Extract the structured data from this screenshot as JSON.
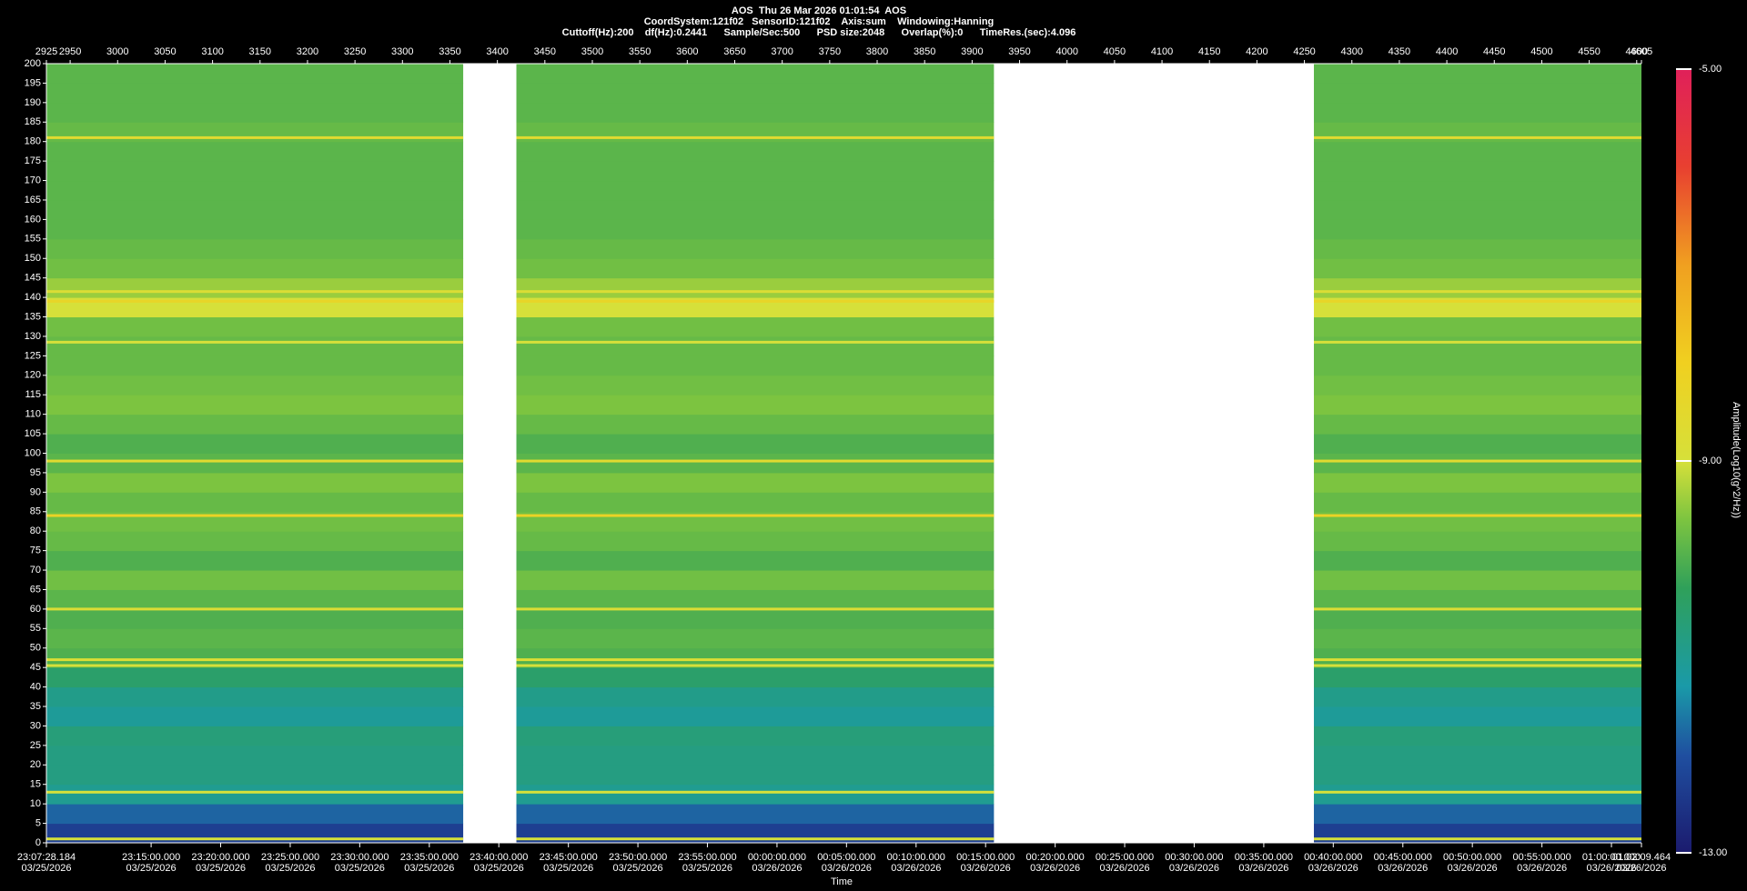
{
  "chart_data": {
    "type": "spectrogram",
    "title_lines": [
      "AOS  Thu 26 Mar 2026 01:01:54  AOS",
      "CoordSystem:121f02   SensorID:121f02    Axis:sum    Windowing:Hanning",
      "Cuttoff(Hz):200    df(Hz):0.2441      Sample/Sec:500      PSD size:2048      Overlap(%):0      TimeRes.(sec):4.096"
    ],
    "xlabel": "Time",
    "colorbar_label": "Amplitude(Log10(g^2/Hz))",
    "xlim": [
      2925,
      4605
    ],
    "ylim": [
      0,
      200
    ],
    "xticks": [
      2925,
      2950,
      3000,
      3050,
      3100,
      3150,
      3200,
      3250,
      3300,
      3350,
      3400,
      3450,
      3500,
      3550,
      3600,
      3650,
      3700,
      3750,
      3800,
      3850,
      3900,
      3950,
      4000,
      4050,
      4100,
      4150,
      4200,
      4250,
      4300,
      4350,
      4400,
      4450,
      4500,
      4550,
      4600,
      4605
    ],
    "yticks": [
      0,
      5,
      10,
      15,
      20,
      25,
      30,
      35,
      40,
      45,
      50,
      55,
      60,
      65,
      70,
      75,
      80,
      85,
      90,
      95,
      100,
      105,
      110,
      115,
      120,
      125,
      130,
      135,
      140,
      145,
      150,
      155,
      160,
      165,
      170,
      175,
      180,
      185,
      190,
      195,
      200
    ],
    "x2ticks": [
      {
        "value": 2925,
        "label": "23:07:28.184"
      },
      {
        "value": 3035.3,
        "label": "23:15:00.000"
      },
      {
        "value": 3108.5,
        "label": "23:20:00.000"
      },
      {
        "value": 3181.8,
        "label": "23:25:00.000"
      },
      {
        "value": 3255.0,
        "label": "23:30:00.000"
      },
      {
        "value": 3328.3,
        "label": "23:35:00.000"
      },
      {
        "value": 3401.5,
        "label": "23:40:00.000"
      },
      {
        "value": 3474.8,
        "label": "23:45:00.000"
      },
      {
        "value": 3548.0,
        "label": "23:50:00.000"
      },
      {
        "value": 3621.2,
        "label": "23:55:00.000"
      },
      {
        "value": 3694.5,
        "label": "00:00:00.000"
      },
      {
        "value": 3767.7,
        "label": "00:05:00.000"
      },
      {
        "value": 3841.0,
        "label": "00:10:00.000"
      },
      {
        "value": 3914.2,
        "label": "00:15:00.000"
      },
      {
        "value": 3987.5,
        "label": "00:20:00.000"
      },
      {
        "value": 4060.7,
        "label": "00:25:00.000"
      },
      {
        "value": 4133.9,
        "label": "00:30:00.000"
      },
      {
        "value": 4207.2,
        "label": "00:35:00.000"
      },
      {
        "value": 4280.4,
        "label": "00:40:00.000"
      },
      {
        "value": 4353.7,
        "label": "00:45:00.000"
      },
      {
        "value": 4426.9,
        "label": "00:50:00.000"
      },
      {
        "value": 4500.2,
        "label": "00:55:00.000"
      },
      {
        "value": 4573.4,
        "label": "01:00:00.000"
      },
      {
        "value": 4605,
        "label": "01:02:09.464"
      }
    ],
    "x2tick_dates": [
      "03/25/2026",
      "03/25/2026",
      "03/25/2026",
      "03/25/2026",
      "03/25/2026",
      "03/25/2026",
      "03/25/2026",
      "03/25/2026",
      "03/25/2026",
      "03/25/2026",
      "03/26/2026",
      "03/26/2026",
      "03/26/2026",
      "03/26/2026",
      "03/26/2026",
      "03/26/2026",
      "03/26/2026",
      "03/26/2026",
      "03/26/2026",
      "03/26/2026",
      "03/26/2026",
      "03/26/2026",
      "03/26/2026",
      "03/26/2026"
    ],
    "segments": [
      [
        2925,
        3364
      ],
      [
        3420,
        3923
      ],
      [
        4260,
        4605
      ]
    ],
    "band_values": [
      -12.3,
      -11.8,
      -11.0,
      -10.8,
      -10.8,
      -10.7,
      -11.1,
      -10.9,
      -10.5,
      -10.0,
      -9.9,
      -10.0,
      -9.9,
      -9.7,
      -10.0,
      -9.8,
      -9.7,
      -9.8,
      -9.6,
      -9.9,
      -10.0,
      -9.8,
      -9.6,
      -9.7,
      -9.8,
      -9.8,
      -9.7,
      -9.0,
      -9.4,
      -9.7,
      -9.8,
      -9.9,
      -9.9,
      -9.9,
      -9.9,
      -9.9,
      -9.8,
      -9.9,
      -9.9,
      -9.9
    ],
    "lines": [
      {
        "freq": 181,
        "value": -8.6
      },
      {
        "freq": 141.5,
        "value": -8.8
      },
      {
        "freq": 139,
        "value": -8.3
      },
      {
        "freq": 128.5,
        "value": -9.0
      },
      {
        "freq": 98,
        "value": -8.6
      },
      {
        "freq": 84,
        "value": -8.2
      },
      {
        "freq": 60,
        "value": -8.8
      },
      {
        "freq": 47,
        "value": -8.8
      },
      {
        "freq": 45.5,
        "value": -9.0
      },
      {
        "freq": 13,
        "value": -9.0
      },
      {
        "freq": 1,
        "value": -9.0
      }
    ],
    "clim": [
      -13,
      -5
    ],
    "cticks": [
      {
        "value": -5,
        "label": "-5.00"
      },
      {
        "value": -9,
        "label": "-9.00"
      },
      {
        "value": -13,
        "label": "-13.00"
      }
    ],
    "colormap": [
      [
        -13,
        "#1b1b6e"
      ],
      [
        -12,
        "#1f4fa0"
      ],
      [
        -11.3,
        "#1a9aa8"
      ],
      [
        -10.3,
        "#2fa05a"
      ],
      [
        -9.6,
        "#7cc440"
      ],
      [
        -9,
        "#d6e03a"
      ],
      [
        -8,
        "#f0d020"
      ],
      [
        -7,
        "#f0a020"
      ],
      [
        -6,
        "#e84030"
      ],
      [
        -5,
        "#e0205a"
      ]
    ]
  }
}
